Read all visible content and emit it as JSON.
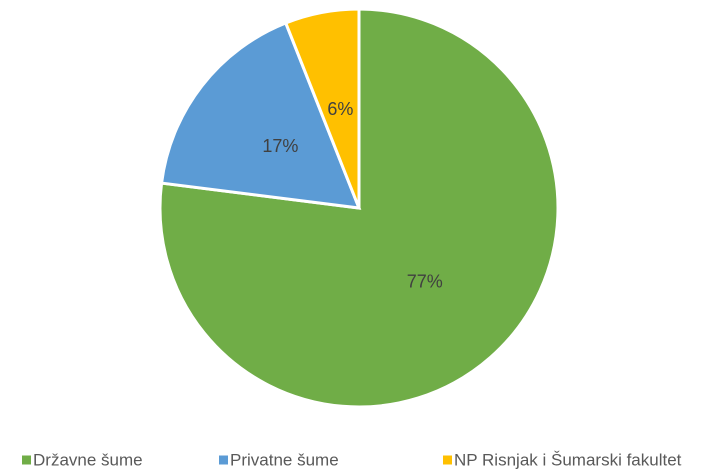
{
  "chart_data": {
    "type": "pie",
    "categories": [
      "Državne šume",
      "Privatne šume",
      "NP Risnjak i Šumarski fakultet"
    ],
    "values": [
      77,
      17,
      6
    ],
    "value_labels": [
      "77%",
      "17%",
      "6%"
    ],
    "colors": [
      "#70ad47",
      "#5b9bd5",
      "#ffc000"
    ],
    "legend": "bottom"
  }
}
